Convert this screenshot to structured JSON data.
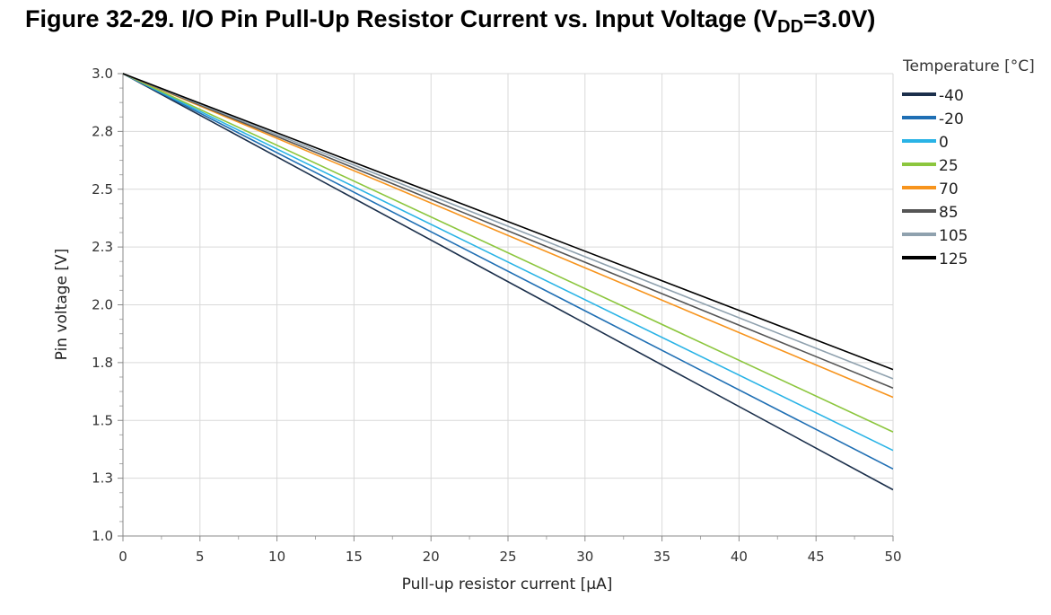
{
  "figure": {
    "title_prefix": "Figure 32-29.  I/O Pin Pull-Up Resistor Current vs. Input Voltage (V",
    "title_sub": "DD",
    "title_suffix": "=3.0V)"
  },
  "chart_data": {
    "type": "line",
    "xlabel": "Pull-up resistor current [µA]",
    "ylabel": "Pin voltage [V]",
    "xlim": [
      0,
      50
    ],
    "ylim": [
      1.0,
      3.0
    ],
    "xticks": [
      0,
      5,
      10,
      15,
      20,
      25,
      30,
      35,
      40,
      45,
      50
    ],
    "yticks": [
      1.0,
      1.25,
      1.5,
      1.75,
      2.0,
      2.25,
      2.5,
      2.75,
      3.0
    ],
    "ytick_labels": [
      "1.0",
      "1.3",
      "1.5",
      "1.8",
      "2.0",
      "2.3",
      "2.5",
      "2.8",
      "3.0"
    ],
    "grid": true,
    "legend_title": "Temperature [°C]",
    "legend_position": "top-right",
    "series": [
      {
        "name": "-40",
        "color": "#1b2f4b",
        "x": [
          0,
          50
        ],
        "y": [
          3.0,
          1.2
        ]
      },
      {
        "name": "-20",
        "color": "#1f6fb4",
        "x": [
          0,
          50
        ],
        "y": [
          3.0,
          1.29
        ]
      },
      {
        "name": "0",
        "color": "#29b3e6",
        "x": [
          0,
          50
        ],
        "y": [
          3.0,
          1.37
        ]
      },
      {
        "name": "25",
        "color": "#8cc63e",
        "x": [
          0,
          50
        ],
        "y": [
          3.0,
          1.45
        ]
      },
      {
        "name": "70",
        "color": "#f7941d",
        "x": [
          0,
          50
        ],
        "y": [
          3.0,
          1.6
        ]
      },
      {
        "name": "85",
        "color": "#555555",
        "x": [
          0,
          50
        ],
        "y": [
          3.0,
          1.64
        ]
      },
      {
        "name": "105",
        "color": "#8fa1ae",
        "x": [
          0,
          50
        ],
        "y": [
          3.0,
          1.68
        ]
      },
      {
        "name": "125",
        "color": "#000000",
        "x": [
          0,
          50
        ],
        "y": [
          3.0,
          1.72
        ]
      }
    ]
  }
}
